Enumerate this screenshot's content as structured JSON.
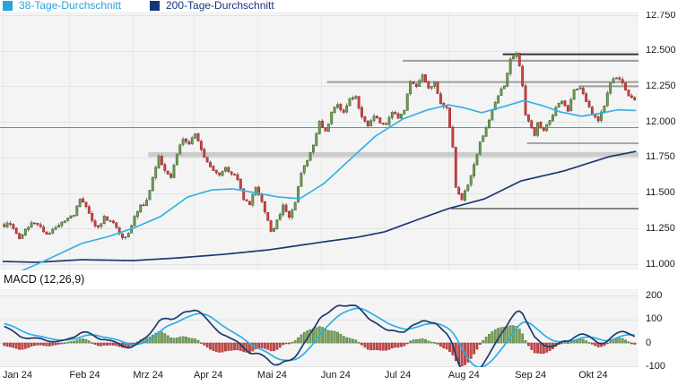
{
  "legend": [
    {
      "label": "38-Tage-Durchschnitt",
      "color": "#2aa3dc"
    },
    {
      "label": "200-Tage-Durchschnitt",
      "color": "#17357d"
    }
  ],
  "macd_panel_title": "MACD (12,26,9)",
  "chart_data": {
    "type": "candlestick",
    "title": "",
    "x_axis_months": [
      {
        "label": "Jan 24",
        "day": 0
      },
      {
        "label": "Feb 24",
        "day": 22
      },
      {
        "label": "Mrz 24",
        "day": 43
      },
      {
        "label": "Apr 24",
        "day": 63
      },
      {
        "label": "Mai 24",
        "day": 84
      },
      {
        "label": "Jun 24",
        "day": 105
      },
      {
        "label": "Jul 24",
        "day": 126
      },
      {
        "label": "Aug 24",
        "day": 147
      },
      {
        "label": "Sep 24",
        "day": 169
      },
      {
        "label": "Okt 24",
        "day": 190
      }
    ],
    "price_axis": {
      "ticks": [
        {
          "label": "12.750",
          "value": 12750
        },
        {
          "label": "12.500",
          "value": 12500
        },
        {
          "label": "12.250",
          "value": 12250
        },
        {
          "label": "12.000",
          "value": 12000
        },
        {
          "label": "11.750",
          "value": 11750
        },
        {
          "label": "11.500",
          "value": 11500
        },
        {
          "label": "11.250",
          "value": 11250
        },
        {
          "label": "11.000",
          "value": 11000
        }
      ]
    },
    "candle_count": 209,
    "price_waypoints": [
      [
        0,
        11270
      ],
      [
        2,
        11290
      ],
      [
        5,
        11170
      ],
      [
        9,
        11300
      ],
      [
        12,
        11260
      ],
      [
        14,
        11210
      ],
      [
        17,
        11260
      ],
      [
        20,
        11300
      ],
      [
        23,
        11350
      ],
      [
        25,
        11460
      ],
      [
        27,
        11400
      ],
      [
        29,
        11300
      ],
      [
        31,
        11250
      ],
      [
        33,
        11330
      ],
      [
        35,
        11300
      ],
      [
        37,
        11260
      ],
      [
        39,
        11180
      ],
      [
        41,
        11220
      ],
      [
        43,
        11330
      ],
      [
        45,
        11410
      ],
      [
        47,
        11440
      ],
      [
        49,
        11600
      ],
      [
        51,
        11760
      ],
      [
        53,
        11660
      ],
      [
        55,
        11600
      ],
      [
        57,
        11780
      ],
      [
        59,
        11880
      ],
      [
        61,
        11850
      ],
      [
        63,
        11920
      ],
      [
        65,
        11800
      ],
      [
        67,
        11720
      ],
      [
        69,
        11650
      ],
      [
        71,
        11630
      ],
      [
        73,
        11680
      ],
      [
        75,
        11640
      ],
      [
        77,
        11600
      ],
      [
        79,
        11450
      ],
      [
        81,
        11420
      ],
      [
        83,
        11540
      ],
      [
        85,
        11450
      ],
      [
        87,
        11300
      ],
      [
        88,
        11220
      ],
      [
        90,
        11300
      ],
      [
        92,
        11420
      ],
      [
        94,
        11330
      ],
      [
        96,
        11440
      ],
      [
        98,
        11650
      ],
      [
        100,
        11730
      ],
      [
        102,
        11840
      ],
      [
        104,
        12000
      ],
      [
        106,
        11930
      ],
      [
        108,
        12060
      ],
      [
        110,
        12130
      ],
      [
        112,
        12060
      ],
      [
        114,
        12160
      ],
      [
        116,
        12180
      ],
      [
        118,
        12030
      ],
      [
        120,
        11980
      ],
      [
        122,
        12050
      ],
      [
        124,
        12000
      ],
      [
        126,
        11990
      ],
      [
        128,
        12070
      ],
      [
        130,
        12020
      ],
      [
        132,
        12090
      ],
      [
        134,
        12290
      ],
      [
        136,
        12240
      ],
      [
        138,
        12330
      ],
      [
        140,
        12230
      ],
      [
        142,
        12280
      ],
      [
        144,
        12120
      ],
      [
        146,
        12090
      ],
      [
        148,
        11830
      ],
      [
        149,
        11550
      ],
      [
        151,
        11450
      ],
      [
        153,
        11560
      ],
      [
        155,
        11700
      ],
      [
        157,
        11860
      ],
      [
        159,
        11950
      ],
      [
        161,
        12090
      ],
      [
        163,
        12190
      ],
      [
        165,
        12260
      ],
      [
        167,
        12440
      ],
      [
        169,
        12480
      ],
      [
        170,
        12400
      ],
      [
        171,
        12250
      ],
      [
        172,
        12060
      ],
      [
        174,
        11950
      ],
      [
        175,
        11900
      ],
      [
        176,
        11990
      ],
      [
        178,
        11940
      ],
      [
        180,
        12010
      ],
      [
        182,
        12100
      ],
      [
        184,
        12150
      ],
      [
        186,
        12080
      ],
      [
        188,
        12230
      ],
      [
        190,
        12240
      ],
      [
        192,
        12150
      ],
      [
        194,
        12050
      ],
      [
        196,
        12000
      ],
      [
        198,
        12120
      ],
      [
        200,
        12270
      ],
      [
        202,
        12320
      ],
      [
        204,
        12270
      ],
      [
        206,
        12190
      ],
      [
        208,
        12160
      ]
    ],
    "synth": {
      "seed": 7,
      "close_jitter": 11,
      "open_jitter": 4,
      "wick_max": 18
    },
    "ma38_points": [
      [
        6,
        10950
      ],
      [
        14,
        11025
      ],
      [
        26,
        11145
      ],
      [
        35,
        11195
      ],
      [
        43,
        11252
      ],
      [
        52,
        11334
      ],
      [
        61,
        11472
      ],
      [
        69,
        11522
      ],
      [
        76,
        11529
      ],
      [
        83,
        11503
      ],
      [
        91,
        11472
      ],
      [
        98,
        11460
      ],
      [
        106,
        11567
      ],
      [
        114,
        11724
      ],
      [
        123,
        11900
      ],
      [
        132,
        12020
      ],
      [
        140,
        12083
      ],
      [
        147,
        12120
      ],
      [
        152,
        12100
      ],
      [
        158,
        12065
      ],
      [
        164,
        12100
      ],
      [
        172,
        12150
      ],
      [
        178,
        12115
      ],
      [
        184,
        12070
      ],
      [
        191,
        12040
      ],
      [
        197,
        12060
      ],
      [
        203,
        12085
      ],
      [
        209,
        12080
      ]
    ],
    "ma200_points": [
      [
        0,
        11019
      ],
      [
        11,
        11013
      ],
      [
        26,
        11031
      ],
      [
        43,
        11025
      ],
      [
        58,
        11044
      ],
      [
        73,
        11069
      ],
      [
        88,
        11101
      ],
      [
        106,
        11157
      ],
      [
        117,
        11189
      ],
      [
        126,
        11227
      ],
      [
        138,
        11321
      ],
      [
        147,
        11390
      ],
      [
        159,
        11459
      ],
      [
        171,
        11585
      ],
      [
        185,
        11654
      ],
      [
        200,
        11755
      ],
      [
        209,
        11793
      ]
    ],
    "levels": [
      {
        "price": 12475,
        "from_day": 165,
        "color": "#333333",
        "width": 2
      },
      {
        "price": 12430,
        "from_day": 132,
        "color": "#9c9c9c",
        "width": 2
      },
      {
        "price": 12280,
        "from_day": 107,
        "color": "#9c9c9c",
        "width": 2
      },
      {
        "price": 12250,
        "from_day": 190,
        "color": "#9c9c9c",
        "width": 2
      },
      {
        "price": 11850,
        "from_day": 173,
        "color": "#8f8f8f",
        "width": 1.5
      },
      {
        "price": 11770,
        "from_day": 48,
        "color": "#cccccc",
        "width": 5.5
      },
      {
        "price": 11390,
        "from_day": 148,
        "color": "#606060",
        "width": 1.5
      }
    ],
    "baseline": {
      "price": 11960,
      "color": "#e06262",
      "width": 1
    },
    "macd": {
      "label": "MACD (12,26,9)",
      "ticks": [
        {
          "label": "200",
          "value": 200
        },
        {
          "label": "100",
          "value": 100
        },
        {
          "label": "0",
          "value": 0
        },
        {
          "label": "-100",
          "value": -100
        }
      ],
      "seed_ema12": 11310,
      "seed_ema26": 11230,
      "seed_signal": 85,
      "line_color": "#1d3a6d",
      "signal_color": "#2bb0e6",
      "hist_up": "#7ba35f",
      "hist_up_border": "#55803b",
      "hist_down": "#c94b4b",
      "hist_down_border": "#a33232"
    },
    "colors": {
      "panel_bg": "#f4f4f5",
      "grid": "#e3e3e3",
      "grid_vertical": "#e8e8e8",
      "candle_up_fill": "#73a05a",
      "candle_up_border": "#456f33",
      "candle_down_fill": "#cd4646",
      "candle_down_border": "#a32c2c",
      "wick": "#666666",
      "ma38": "#35b2e5",
      "ma200": "#1c3a70",
      "axis_text": "#1a1a1a"
    }
  }
}
